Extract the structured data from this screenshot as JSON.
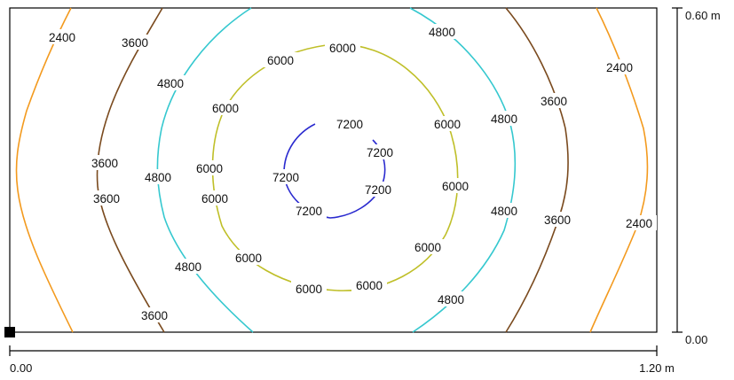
{
  "plot": {
    "contour_levels": [
      {
        "value": "2400",
        "color": "#F39A1E"
      },
      {
        "value": "3600",
        "color": "#7A4A1E"
      },
      {
        "value": "4800",
        "color": "#35C8CF"
      },
      {
        "value": "6000",
        "color": "#BFBF28"
      },
      {
        "value": "7200",
        "color": "#2A2ACF"
      }
    ],
    "labels": [
      "2400",
      "3600",
      "4800",
      "6000",
      "6000",
      "4800",
      "3600",
      "2400",
      "3600",
      "3600",
      "4800",
      "6000",
      "6000",
      "6000",
      "7200",
      "7200",
      "7200",
      "7200",
      "7200",
      "6000",
      "6000",
      "4800",
      "4800",
      "3600",
      "2400",
      "4800",
      "6000",
      "6000",
      "6000",
      "6000",
      "4800",
      "3600"
    ]
  },
  "scale": {
    "x_start": "0.00",
    "x_end": "1.20 m",
    "y_start": "0.00",
    "y_end": "0.60 m"
  }
}
